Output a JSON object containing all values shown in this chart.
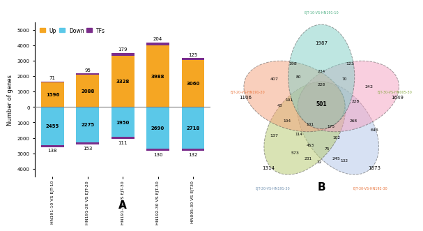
{
  "bar": {
    "categories": [
      "HN191-10 VS EJT-10",
      "HN191-20 VS EJT-20",
      "HN191-30 VS EJT-30",
      "HN192-30 VS EJT-30",
      "HN005-30 VS EJT30"
    ],
    "up_values": [
      1596,
      2088,
      3328,
      3988,
      3060
    ],
    "down_values": [
      2455,
      2275,
      1950,
      2690,
      2718
    ],
    "tfs_up": [
      71,
      95,
      179,
      204,
      125
    ],
    "tfs_down": [
      138,
      153,
      111,
      130,
      132
    ],
    "up_color": "#F5A623",
    "down_color": "#5BC8E8",
    "tfs_color": "#7B2D8B",
    "ylabel": "Number of genes",
    "legend_labels": [
      "Up",
      "Down",
      "TFs"
    ]
  },
  "venn": {
    "ellipse_colors": [
      "#7ECEC4",
      "#F4A07A",
      "#B5C96A",
      "#B0C4E8",
      "#F4A0C0"
    ],
    "label_colors": [
      "#4CAF82",
      "#E8733A",
      "#4CAF82",
      "#B0B0B0",
      "#E8733A"
    ],
    "label_texts": [
      "EJT-10-VS-HN191-10",
      "EJT-20-VS-HN191-20",
      "EJT-30-VS-HN005-30",
      "EJT-20-VS-HN191-30",
      "EJT-30-VS-HN192-30"
    ],
    "ellipse_alpha": 0.5
  }
}
